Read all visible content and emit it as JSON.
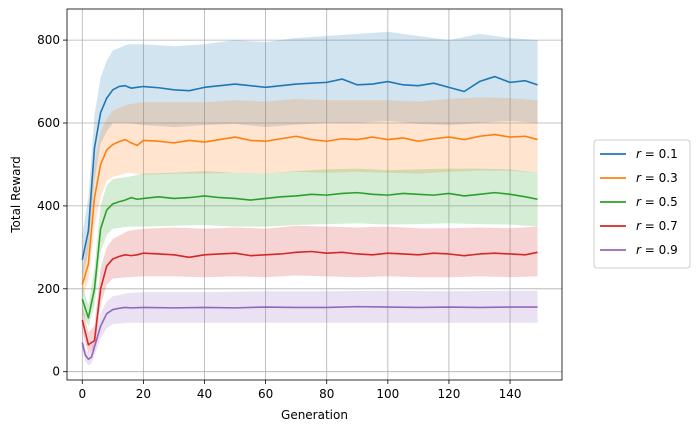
{
  "chart_data": {
    "type": "line",
    "title": "",
    "xlabel": "Generation",
    "ylabel": "Total Reward",
    "xlim": [
      -5,
      157
    ],
    "ylim": [
      -20,
      875
    ],
    "xticks": [
      0,
      20,
      40,
      60,
      80,
      100,
      120,
      140
    ],
    "yticks": [
      0,
      200,
      400,
      600,
      800
    ],
    "grid": true,
    "legend_position": "right, outside plot",
    "shaded_band": "mean ± spread",
    "series": [
      {
        "name": "r = 0.1",
        "color": "#1f77b4",
        "points": [
          [
            0,
            270
          ],
          [
            2,
            340
          ],
          [
            4,
            540
          ],
          [
            6,
            625
          ],
          [
            8,
            660
          ],
          [
            10,
            680
          ],
          [
            12,
            688
          ],
          [
            14,
            690
          ],
          [
            16,
            684
          ],
          [
            18,
            686
          ],
          [
            20,
            688
          ],
          [
            25,
            685
          ],
          [
            30,
            680
          ],
          [
            35,
            678
          ],
          [
            40,
            686
          ],
          [
            45,
            690
          ],
          [
            50,
            694
          ],
          [
            55,
            690
          ],
          [
            60,
            686
          ],
          [
            65,
            690
          ],
          [
            70,
            694
          ],
          [
            75,
            696
          ],
          [
            80,
            698
          ],
          [
            85,
            706
          ],
          [
            90,
            692
          ],
          [
            95,
            694
          ],
          [
            100,
            700
          ],
          [
            105,
            692
          ],
          [
            110,
            690
          ],
          [
            115,
            696
          ],
          [
            120,
            686
          ],
          [
            125,
            676
          ],
          [
            130,
            700
          ],
          [
            135,
            712
          ],
          [
            140,
            698
          ],
          [
            145,
            702
          ],
          [
            149,
            692
          ]
        ],
        "band": [
          [
            0,
            220,
            330
          ],
          [
            2,
            290,
            420
          ],
          [
            4,
            460,
            620
          ],
          [
            6,
            550,
            710
          ],
          [
            8,
            580,
            750
          ],
          [
            10,
            600,
            775
          ],
          [
            15,
            600,
            790
          ],
          [
            20,
            595,
            790
          ],
          [
            30,
            590,
            785
          ],
          [
            40,
            595,
            790
          ],
          [
            50,
            598,
            800
          ],
          [
            60,
            590,
            795
          ],
          [
            70,
            596,
            805
          ],
          [
            80,
            600,
            810
          ],
          [
            90,
            600,
            815
          ],
          [
            100,
            605,
            820
          ],
          [
            110,
            598,
            810
          ],
          [
            120,
            595,
            800
          ],
          [
            130,
            600,
            815
          ],
          [
            140,
            605,
            805
          ],
          [
            149,
            600,
            800
          ]
        ]
      },
      {
        "name": "r = 0.3",
        "color": "#ff7f0e",
        "points": [
          [
            0,
            210
          ],
          [
            2,
            260
          ],
          [
            4,
            420
          ],
          [
            6,
            500
          ],
          [
            8,
            535
          ],
          [
            10,
            548
          ],
          [
            12,
            555
          ],
          [
            14,
            560
          ],
          [
            16,
            552
          ],
          [
            18,
            546
          ],
          [
            20,
            558
          ],
          [
            25,
            556
          ],
          [
            30,
            552
          ],
          [
            35,
            558
          ],
          [
            40,
            554
          ],
          [
            45,
            560
          ],
          [
            50,
            566
          ],
          [
            55,
            558
          ],
          [
            60,
            556
          ],
          [
            65,
            562
          ],
          [
            70,
            568
          ],
          [
            75,
            560
          ],
          [
            80,
            556
          ],
          [
            85,
            562
          ],
          [
            90,
            560
          ],
          [
            95,
            566
          ],
          [
            100,
            560
          ],
          [
            105,
            564
          ],
          [
            110,
            556
          ],
          [
            115,
            562
          ],
          [
            120,
            566
          ],
          [
            125,
            560
          ],
          [
            130,
            568
          ],
          [
            135,
            572
          ],
          [
            140,
            566
          ],
          [
            145,
            568
          ],
          [
            149,
            560
          ]
        ],
        "band": [
          [
            0,
            180,
            250
          ],
          [
            2,
            220,
            330
          ],
          [
            4,
            350,
            500
          ],
          [
            6,
            420,
            580
          ],
          [
            8,
            460,
            610
          ],
          [
            10,
            470,
            630
          ],
          [
            15,
            480,
            645
          ],
          [
            20,
            475,
            650
          ],
          [
            30,
            478,
            650
          ],
          [
            40,
            478,
            650
          ],
          [
            50,
            480,
            655
          ],
          [
            60,
            478,
            652
          ],
          [
            70,
            482,
            658
          ],
          [
            80,
            480,
            655
          ],
          [
            90,
            482,
            655
          ],
          [
            100,
            480,
            655
          ],
          [
            110,
            478,
            652
          ],
          [
            120,
            482,
            658
          ],
          [
            130,
            485,
            662
          ],
          [
            140,
            485,
            660
          ],
          [
            149,
            480,
            655
          ]
        ]
      },
      {
        "name": "r = 0.5",
        "color": "#2ca02c",
        "points": [
          [
            0,
            175
          ],
          [
            2,
            130
          ],
          [
            4,
            200
          ],
          [
            6,
            345
          ],
          [
            8,
            390
          ],
          [
            10,
            405
          ],
          [
            12,
            410
          ],
          [
            14,
            414
          ],
          [
            16,
            420
          ],
          [
            18,
            416
          ],
          [
            20,
            418
          ],
          [
            25,
            422
          ],
          [
            30,
            418
          ],
          [
            35,
            420
          ],
          [
            40,
            424
          ],
          [
            45,
            420
          ],
          [
            50,
            418
          ],
          [
            55,
            414
          ],
          [
            60,
            418
          ],
          [
            65,
            422
          ],
          [
            70,
            424
          ],
          [
            75,
            428
          ],
          [
            80,
            426
          ],
          [
            85,
            430
          ],
          [
            90,
            432
          ],
          [
            95,
            428
          ],
          [
            100,
            426
          ],
          [
            105,
            430
          ],
          [
            110,
            428
          ],
          [
            115,
            426
          ],
          [
            120,
            430
          ],
          [
            125,
            424
          ],
          [
            130,
            428
          ],
          [
            135,
            432
          ],
          [
            140,
            428
          ],
          [
            145,
            422
          ],
          [
            149,
            416
          ]
        ],
        "band": [
          [
            0,
            140,
            210
          ],
          [
            2,
            110,
            160
          ],
          [
            4,
            160,
            250
          ],
          [
            6,
            290,
            400
          ],
          [
            8,
            330,
            450
          ],
          [
            10,
            345,
            465
          ],
          [
            15,
            350,
            470
          ],
          [
            20,
            350,
            478
          ],
          [
            30,
            352,
            480
          ],
          [
            40,
            354,
            484
          ],
          [
            50,
            350,
            480
          ],
          [
            60,
            350,
            478
          ],
          [
            70,
            354,
            484
          ],
          [
            80,
            356,
            488
          ],
          [
            90,
            358,
            490
          ],
          [
            100,
            355,
            486
          ],
          [
            110,
            356,
            488
          ],
          [
            120,
            358,
            490
          ],
          [
            130,
            356,
            490
          ],
          [
            140,
            355,
            488
          ],
          [
            149,
            350,
            480
          ]
        ]
      },
      {
        "name": "r = 0.7",
        "color": "#d62728",
        "points": [
          [
            0,
            125
          ],
          [
            2,
            65
          ],
          [
            4,
            75
          ],
          [
            6,
            200
          ],
          [
            8,
            255
          ],
          [
            10,
            272
          ],
          [
            12,
            278
          ],
          [
            14,
            282
          ],
          [
            16,
            280
          ],
          [
            18,
            282
          ],
          [
            20,
            286
          ],
          [
            25,
            284
          ],
          [
            30,
            282
          ],
          [
            35,
            276
          ],
          [
            40,
            282
          ],
          [
            45,
            284
          ],
          [
            50,
            286
          ],
          [
            55,
            280
          ],
          [
            60,
            282
          ],
          [
            65,
            284
          ],
          [
            70,
            288
          ],
          [
            75,
            290
          ],
          [
            80,
            286
          ],
          [
            85,
            288
          ],
          [
            90,
            284
          ],
          [
            95,
            282
          ],
          [
            100,
            286
          ],
          [
            105,
            284
          ],
          [
            110,
            282
          ],
          [
            115,
            286
          ],
          [
            120,
            284
          ],
          [
            125,
            280
          ],
          [
            130,
            284
          ],
          [
            135,
            286
          ],
          [
            140,
            284
          ],
          [
            145,
            282
          ],
          [
            149,
            288
          ]
        ],
        "band": [
          [
            0,
            95,
            160
          ],
          [
            2,
            45,
            95
          ],
          [
            4,
            55,
            110
          ],
          [
            6,
            160,
            250
          ],
          [
            8,
            210,
            300
          ],
          [
            10,
            225,
            320
          ],
          [
            15,
            228,
            340
          ],
          [
            20,
            230,
            345
          ],
          [
            30,
            230,
            348
          ],
          [
            40,
            228,
            345
          ],
          [
            50,
            230,
            348
          ],
          [
            60,
            228,
            345
          ],
          [
            70,
            232,
            352
          ],
          [
            80,
            230,
            350
          ],
          [
            90,
            228,
            348
          ],
          [
            100,
            230,
            350
          ],
          [
            110,
            228,
            346
          ],
          [
            120,
            228,
            346
          ],
          [
            130,
            230,
            348
          ],
          [
            140,
            228,
            346
          ],
          [
            149,
            230,
            350
          ]
        ]
      },
      {
        "name": "r = 0.9",
        "color": "#9467bd",
        "points": [
          [
            0,
            70
          ],
          [
            1,
            40
          ],
          [
            2,
            30
          ],
          [
            3,
            35
          ],
          [
            4,
            60
          ],
          [
            6,
            110
          ],
          [
            8,
            140
          ],
          [
            10,
            150
          ],
          [
            12,
            153
          ],
          [
            14,
            155
          ],
          [
            16,
            154
          ],
          [
            20,
            155
          ],
          [
            30,
            154
          ],
          [
            40,
            155
          ],
          [
            50,
            154
          ],
          [
            60,
            156
          ],
          [
            70,
            155
          ],
          [
            80,
            155
          ],
          [
            90,
            157
          ],
          [
            100,
            156
          ],
          [
            110,
            155
          ],
          [
            120,
            156
          ],
          [
            130,
            155
          ],
          [
            140,
            156
          ],
          [
            149,
            156
          ]
        ],
        "band": [
          [
            0,
            55,
            90
          ],
          [
            1,
            25,
            55
          ],
          [
            2,
            15,
            45
          ],
          [
            3,
            20,
            50
          ],
          [
            4,
            40,
            85
          ],
          [
            6,
            80,
            140
          ],
          [
            8,
            105,
            170
          ],
          [
            10,
            115,
            182
          ],
          [
            15,
            118,
            190
          ],
          [
            20,
            118,
            192
          ],
          [
            40,
            118,
            192
          ],
          [
            60,
            118,
            194
          ],
          [
            80,
            118,
            194
          ],
          [
            100,
            118,
            195
          ],
          [
            120,
            118,
            194
          ],
          [
            140,
            118,
            195
          ],
          [
            149,
            118,
            195
          ]
        ]
      }
    ]
  },
  "legend": {
    "items": [
      {
        "prefix": "r",
        "eq": " = ",
        "value": "0.1"
      },
      {
        "prefix": "r",
        "eq": " = ",
        "value": "0.3"
      },
      {
        "prefix": "r",
        "eq": " = ",
        "value": "0.5"
      },
      {
        "prefix": "r",
        "eq": " = ",
        "value": "0.7"
      },
      {
        "prefix": "r",
        "eq": " = ",
        "value": "0.9"
      }
    ]
  }
}
